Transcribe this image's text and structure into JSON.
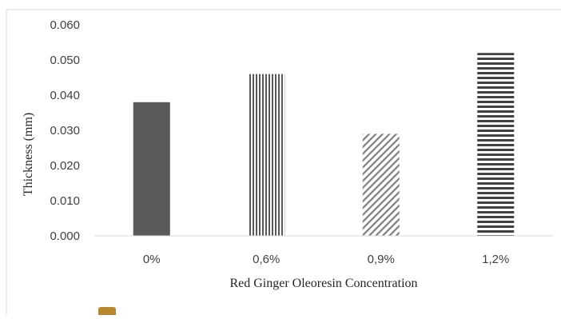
{
  "chart_data": {
    "type": "bar",
    "title": "",
    "xlabel": "Red Ginger Oleoresin Concentration",
    "ylabel": "Thickness (mm)",
    "categories": [
      "0%",
      "0,6%",
      "0,9%",
      "1,2%"
    ],
    "values": [
      0.038,
      0.046,
      0.029,
      0.052
    ],
    "ylim": [
      0,
      0.06
    ],
    "yticks": [
      "0.000",
      "0.010",
      "0.020",
      "0.030",
      "0.040",
      "0.050",
      "0.060"
    ],
    "grid": false,
    "legend": "none",
    "bar_patterns": [
      "solid",
      "vertical-lines",
      "diagonal-lines",
      "horizontal-lines"
    ],
    "colors": {
      "bar": "#595959",
      "axis": "#d9d9d9",
      "legend_marker": "#b8872f"
    }
  }
}
